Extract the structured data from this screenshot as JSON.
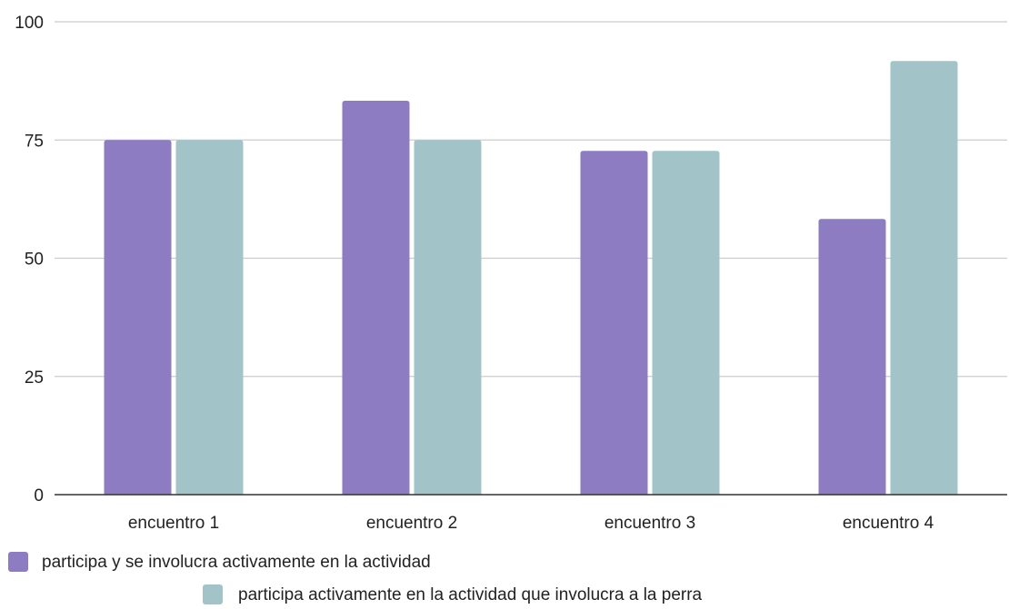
{
  "chart_data": {
    "type": "bar",
    "title": "",
    "xlabel": "",
    "ylabel": "",
    "categories": [
      "encuentro 1",
      "encuentro 2",
      "encuentro 3",
      "encuentro 4"
    ],
    "series": [
      {
        "name": "participa y se involucra activamente en la actividad",
        "color": "#8e7cc3",
        "values": [
          75,
          83.3,
          72.7,
          58.3
        ]
      },
      {
        "name": "participa activamente en la actividad que involucra a la perra",
        "color": "#a2c4c9",
        "values": [
          75,
          75,
          72.7,
          91.7
        ]
      }
    ],
    "ylim": [
      0,
      100
    ],
    "yticks": [
      0,
      25,
      50,
      75,
      100
    ],
    "grid": true,
    "legend_position": "bottom-left"
  }
}
